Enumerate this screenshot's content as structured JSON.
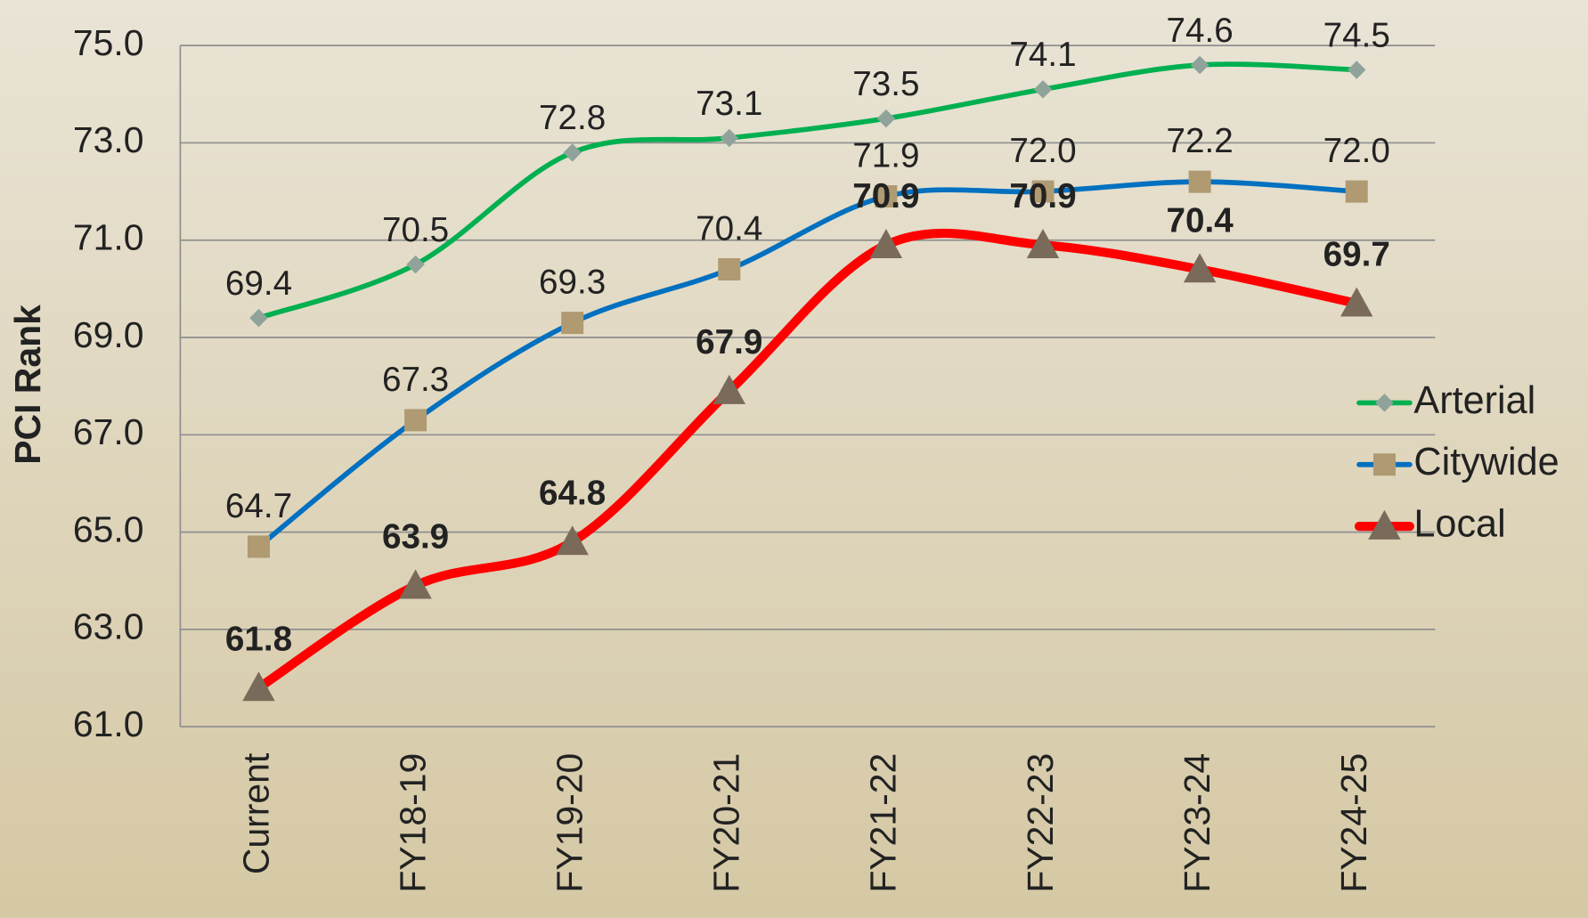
{
  "chart_data": {
    "type": "line",
    "y_label": "PCI Rank",
    "categories": [
      "Current",
      "FY18-19",
      "FY19-20",
      "FY20-21",
      "FY21-22",
      "FY22-23",
      "FY23-24",
      "FY24-25"
    ],
    "series": [
      {
        "name": "Arterial",
        "color": "#00b050",
        "marker": "diamond",
        "marker_color": "#8fa39a",
        "values": [
          69.4,
          70.5,
          72.8,
          73.1,
          73.5,
          74.1,
          74.6,
          74.5
        ],
        "value_labels": [
          "69.4",
          "70.5",
          "72.8",
          "73.1",
          "73.5",
          "74.1",
          "74.6",
          "74.5"
        ]
      },
      {
        "name": "Citywide",
        "color": "#0070c0",
        "marker": "square",
        "marker_color": "#b09a72",
        "values": [
          64.7,
          67.3,
          69.3,
          70.4,
          71.9,
          72.0,
          72.2,
          72.0
        ],
        "value_labels": [
          "64.7",
          "67.3",
          "69.3",
          "70.4",
          "71.9",
          "72.0",
          "72.2",
          "72.0"
        ]
      },
      {
        "name": "Local",
        "color": "#ff0000",
        "marker": "triangle",
        "marker_color": "#7a6a5a",
        "values": [
          61.8,
          63.9,
          64.8,
          67.9,
          70.9,
          70.9,
          70.4,
          69.7
        ],
        "value_labels": [
          "61.8",
          "63.9",
          "64.8",
          "67.9",
          "70.9",
          "70.9",
          "70.4",
          "69.7"
        ]
      }
    ],
    "ylim": [
      61,
      75
    ],
    "yticks": [
      {
        "value": 61,
        "label": "61.0"
      },
      {
        "value": 63,
        "label": "63.0"
      },
      {
        "value": 65,
        "label": "65.0"
      },
      {
        "value": 67,
        "label": "67.0"
      },
      {
        "value": 69,
        "label": "69.0"
      },
      {
        "value": 71,
        "label": "71.0"
      },
      {
        "value": 73,
        "label": "73.0"
      },
      {
        "value": 75,
        "label": "75.0"
      }
    ],
    "grid": true,
    "legend": "right"
  }
}
